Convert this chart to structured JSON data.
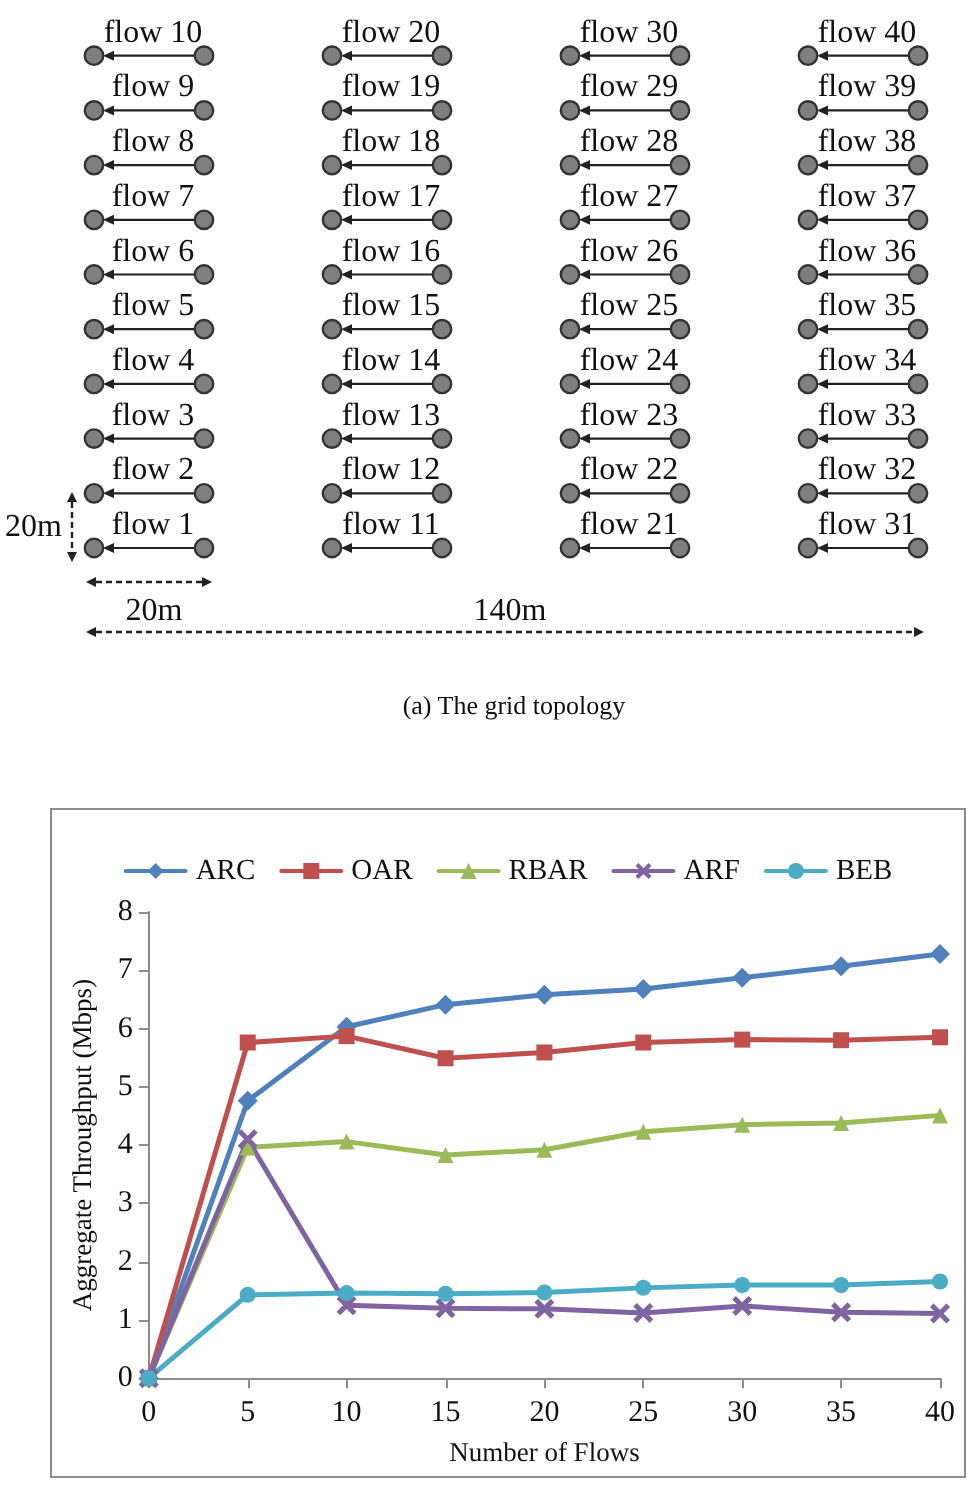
{
  "chart_data": [
    {
      "type": "other",
      "annotations": [
        "flow 1",
        "flow 2",
        "flow 3",
        "flow 4",
        "flow 5",
        "flow 6",
        "flow 7",
        "flow 8",
        "flow 9",
        "flow 10",
        "flow 11",
        "flow 12",
        "flow 13",
        "flow 14",
        "flow 15",
        "flow 16",
        "flow 17",
        "flow 18",
        "flow 19",
        "flow 20",
        "flow 21",
        "flow 22",
        "flow 23",
        "flow 24",
        "flow 25",
        "flow 26",
        "flow 27",
        "flow 28",
        "flow 29",
        "flow 30",
        "flow 31",
        "flow 32",
        "flow 33",
        "flow 34",
        "flow 35",
        "flow 36",
        "flow 37",
        "flow 38",
        "flow 39",
        "flow 40",
        "20m",
        "20m",
        "140m",
        "(a) The grid topology"
      ]
    },
    {
      "type": "line",
      "xlabel": "Number of Flows",
      "ylabel": "Aggregate Throughput (Mbps)",
      "x": [
        0,
        5,
        10,
        15,
        20,
        25,
        30,
        35,
        40
      ],
      "xlim": [
        0,
        40
      ],
      "xticks": [
        0,
        5,
        10,
        15,
        20,
        25,
        30,
        35,
        40
      ],
      "ylim": [
        0,
        8
      ],
      "yticks": [
        0,
        1,
        2,
        3,
        4,
        5,
        6,
        7,
        8
      ],
      "grid": false,
      "legend": "top",
      "series": [
        {
          "name": "ARC",
          "color": "#4f81bd",
          "marker": "diamond",
          "values": [
            0,
            4.76,
            6.03,
            6.41,
            6.58,
            6.68,
            6.87,
            7.07,
            7.28
          ]
        },
        {
          "name": "OAR",
          "color": "#c0504d",
          "marker": "square",
          "values": [
            0,
            5.76,
            5.87,
            5.49,
            5.59,
            5.76,
            5.81,
            5.8,
            5.85
          ]
        },
        {
          "name": "RBAR",
          "color": "#9bbb59",
          "marker": "triangle",
          "values": [
            0,
            3.96,
            4.06,
            3.83,
            3.92,
            4.23,
            4.35,
            4.38,
            4.51
          ]
        },
        {
          "name": "ARF",
          "color": "#8064a2",
          "marker": "cross",
          "values": [
            0,
            4.1,
            1.25,
            1.2,
            1.19,
            1.12,
            1.24,
            1.13,
            1.11
          ]
        },
        {
          "name": "BEB",
          "color": "#4bacc6",
          "marker": "circle",
          "values": [
            0,
            1.43,
            1.46,
            1.45,
            1.47,
            1.55,
            1.6,
            1.6,
            1.66
          ]
        }
      ]
    }
  ]
}
